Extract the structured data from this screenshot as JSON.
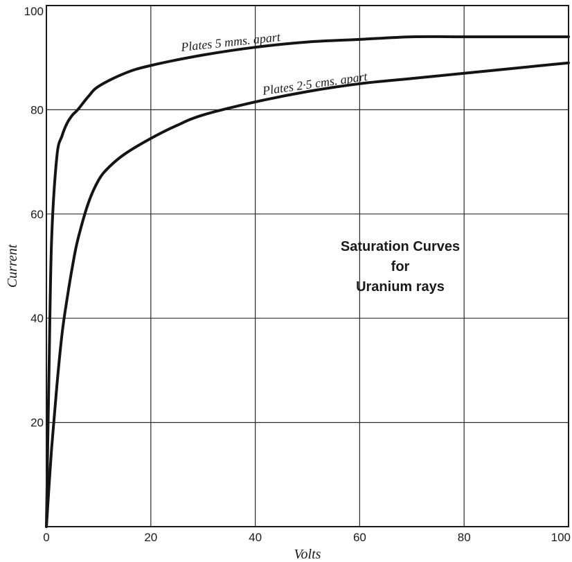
{
  "chart_data": {
    "type": "line",
    "title_lines": [
      "Saturation Curves",
      "for",
      "Uranium rays"
    ],
    "xlabel": "Volts",
    "ylabel": "Current",
    "xlim": [
      0,
      100
    ],
    "ylim": [
      0,
      100
    ],
    "x_ticks": [
      "0",
      "20",
      "40",
      "60",
      "80",
      "100"
    ],
    "y_ticks": [
      "20",
      "40",
      "60",
      "80",
      "100"
    ],
    "grid": true,
    "series": [
      {
        "name": "Plates 5 mms. apart",
        "x": [
          0,
          0.5,
          1,
          2,
          3,
          4,
          5,
          6,
          8,
          10,
          15,
          20,
          30,
          40,
          50,
          60,
          70,
          80,
          90,
          100
        ],
        "y": [
          0,
          30,
          55,
          71,
          75,
          77.5,
          79,
          80,
          82.5,
          84.5,
          87,
          88.5,
          90.5,
          92,
          93,
          93.5,
          94,
          94,
          94,
          94
        ]
      },
      {
        "name": "Plates 2·5 cms. apart",
        "x": [
          0,
          1,
          2,
          3,
          4,
          5,
          6,
          8,
          10,
          12,
          15,
          20,
          25,
          30,
          40,
          50,
          60,
          70,
          80,
          90,
          100
        ],
        "y": [
          0,
          15,
          27,
          37,
          44,
          50,
          55,
          62,
          66.5,
          69,
          71.5,
          74.5,
          77,
          79,
          81.5,
          83.5,
          85,
          86,
          87,
          88,
          89
        ]
      }
    ]
  }
}
